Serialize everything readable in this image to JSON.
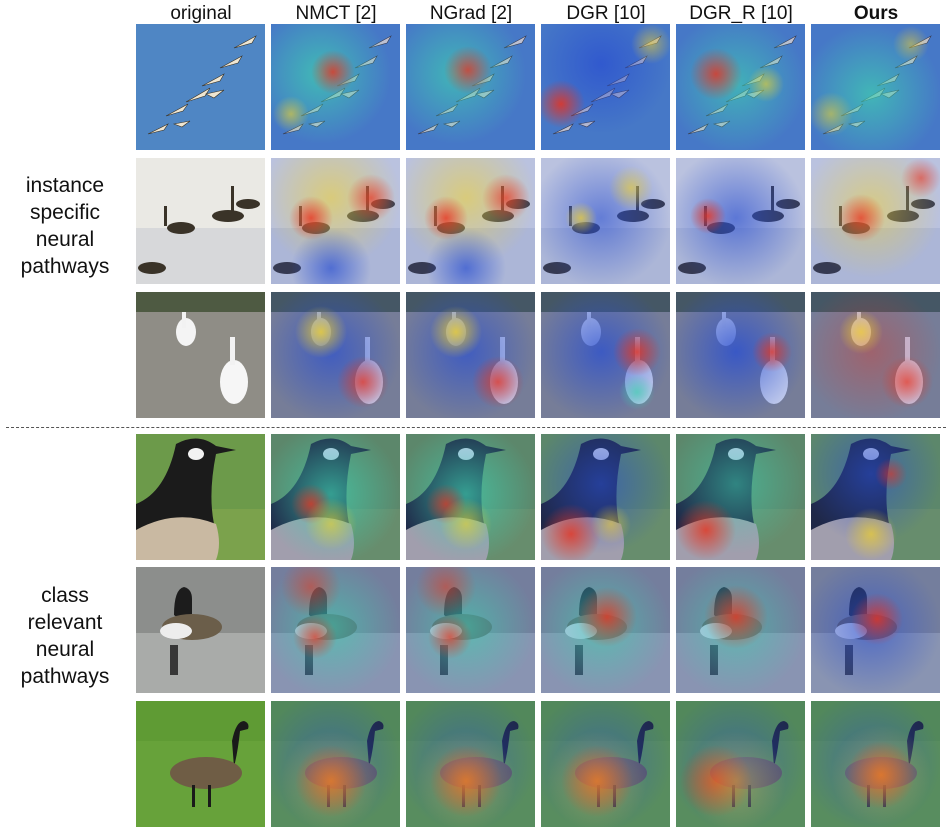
{
  "columns": [
    {
      "label": "original",
      "bold": false
    },
    {
      "label": "NMCT [2]",
      "bold": false
    },
    {
      "label": "NGrad [2]",
      "bold": false
    },
    {
      "label": "DGR [10]",
      "bold": false
    },
    {
      "label": "DGR_R [10]",
      "bold": false
    },
    {
      "label": "Ours",
      "bold": true
    }
  ],
  "groups": [
    {
      "label_lines": [
        "instance",
        "specific",
        "neural",
        "pathways"
      ]
    },
    {
      "label_lines": [
        "class",
        "relevant",
        "neural",
        "pathways"
      ]
    }
  ],
  "rows": [
    {
      "scene": "snow-geese-flying-sky"
    },
    {
      "scene": "geese-on-water"
    },
    {
      "scene": "white-geese-on-path"
    },
    {
      "scene": "canada-goose-closeup"
    },
    {
      "scene": "canada-goose-swimming"
    },
    {
      "scene": "canada-goose-on-grass"
    }
  ],
  "colors": {
    "heat_hot": "#e8321e",
    "heat_warm": "#f2d22a",
    "heat_mid": "#3fd0b0",
    "heat_cool": "#2a4fd0"
  }
}
